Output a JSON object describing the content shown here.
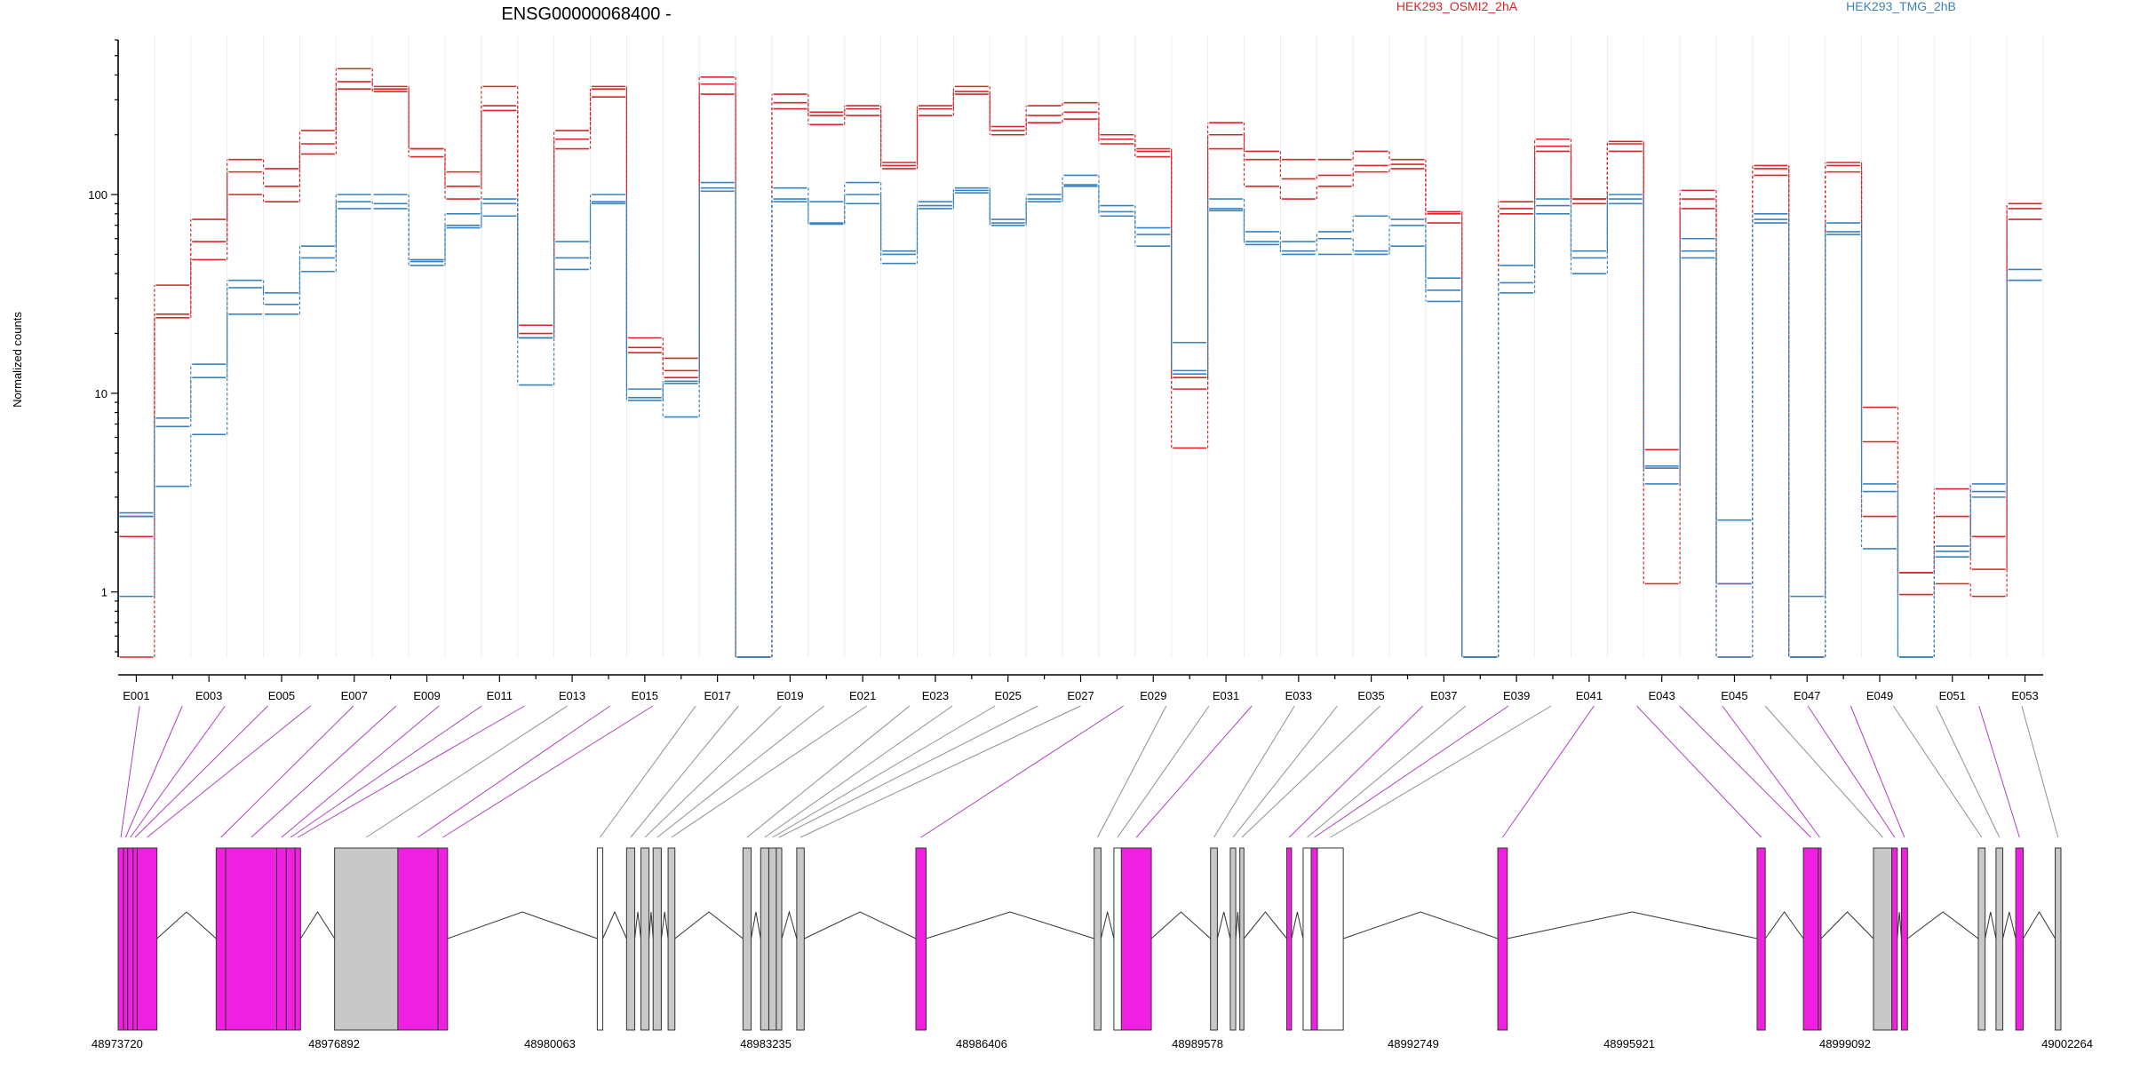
{
  "chart_data": {
    "type": "line",
    "title": "ENSG00000068400 -",
    "ylabel": "Normalized counts",
    "yscale": "log",
    "ylim": [
      0.47,
      600
    ],
    "y_ticks": [
      {
        "value": 1,
        "label": "1"
      },
      {
        "value": 10,
        "label": "10"
      },
      {
        "value": 100,
        "label": "100"
      }
    ],
    "bins": [
      "E001",
      "E002",
      "E003",
      "E004",
      "E005",
      "E006",
      "E007",
      "E008",
      "E009",
      "E010",
      "E011",
      "E012",
      "E013",
      "E014",
      "E015",
      "E016",
      "E017",
      "E018",
      "E019",
      "E020",
      "E021",
      "E022",
      "E023",
      "E024",
      "E025",
      "E026",
      "E027",
      "E028",
      "E029",
      "E030",
      "E031",
      "E032",
      "E033",
      "E034",
      "E035",
      "E036",
      "E037",
      "E038",
      "E039",
      "E040",
      "E041",
      "E042",
      "E043",
      "E044",
      "E045",
      "E046",
      "E047",
      "E048",
      "E049",
      "E050",
      "E051",
      "E052",
      "E053"
    ],
    "bin_tick_labels": [
      "E001",
      "E003",
      "E005",
      "E007",
      "E009",
      "E011",
      "E013",
      "E015",
      "E017",
      "E019",
      "E021",
      "E023",
      "E025",
      "E027",
      "E029",
      "E031",
      "E033",
      "E035",
      "E037",
      "E039",
      "E041",
      "E043",
      "E045",
      "E047",
      "E049",
      "E051",
      "E053"
    ],
    "legend": [
      {
        "name": "HEK293_OSMI2_2hA",
        "color": "#d62728"
      },
      {
        "name": "HEK293_TMG_2hB",
        "color": "#3a82be"
      }
    ],
    "series": [
      {
        "group": "HEK293_OSMI2_2hA",
        "color": "#d62728",
        "values": [
          0.47,
          25,
          58,
          130,
          110,
          180,
          430,
          340,
          170,
          110,
          280,
          20,
          190,
          340,
          17,
          13,
          360,
          0.47,
          290,
          250,
          270,
          140,
          270,
          330,
          210,
          250,
          260,
          190,
          165,
          10.5,
          200,
          150,
          120,
          125,
          140,
          142,
          80,
          0.47,
          85,
          175,
          95,
          180,
          4.2,
          95,
          0.47,
          135,
          0.47,
          140,
          5.7,
          1.25,
          2.4,
          1.9,
          85
        ]
      },
      {
        "group": "HEK293_OSMI2_2hA",
        "color": "#d62728",
        "values": [
          1.9,
          24,
          47,
          100,
          92,
          160,
          340,
          330,
          155,
          95,
          265,
          19,
          170,
          310,
          16,
          12,
          320,
          0.47,
          270,
          225,
          250,
          135,
          250,
          320,
          200,
          230,
          240,
          180,
          155,
          5.3,
          170,
          110,
          95,
          110,
          130,
          135,
          72,
          0.47,
          80,
          165,
          90,
          165,
          1.1,
          85,
          1.1,
          125,
          0.47,
          130,
          2.4,
          0.97,
          1.1,
          0.95,
          75
        ]
      },
      {
        "group": "HEK293_OSMI2_2hA",
        "color": "#d62728",
        "values": [
          2.4,
          35,
          75,
          150,
          135,
          210,
          370,
          350,
          170,
          130,
          350,
          22,
          210,
          350,
          19,
          15,
          390,
          0.47,
          320,
          260,
          280,
          145,
          280,
          350,
          220,
          280,
          290,
          200,
          170,
          12,
          230,
          165,
          150,
          150,
          165,
          150,
          82,
          0.47,
          92,
          190,
          95,
          185,
          5.2,
          105,
          1.1,
          140,
          0.47,
          145,
          8.5,
          1.25,
          3.3,
          1.3,
          90
        ]
      },
      {
        "group": "HEK293_TMG_2hB",
        "color": "#3a82be",
        "values": [
          0.95,
          7.5,
          14,
          37,
          32,
          55,
          100,
          100,
          47,
          80,
          95,
          11,
          58,
          100,
          10.5,
          7.6,
          115,
          0.47,
          108,
          92,
          115,
          52,
          92,
          108,
          75,
          100,
          125,
          88,
          68,
          18,
          95,
          65,
          58,
          65,
          78,
          75,
          38,
          0.47,
          44,
          95,
          52,
          100,
          3.5,
          60,
          2.3,
          80,
          0.95,
          72,
          3.5,
          0.47,
          1.7,
          3.5,
          42
        ]
      },
      {
        "group": "HEK293_TMG_2hB",
        "color": "#3a82be",
        "values": [
          2.4,
          6.8,
          12,
          34,
          28,
          48,
          92,
          90,
          46,
          70,
          90,
          19,
          48,
          90,
          9.5,
          11.5,
          108,
          0.47,
          95,
          72,
          90,
          50,
          88,
          105,
          72,
          95,
          112,
          82,
          63,
          13,
          85,
          58,
          52,
          60,
          52,
          70,
          33,
          0.47,
          36,
          88,
          48,
          95,
          4.2,
          52,
          1.1,
          75,
          0.47,
          65,
          1.65,
          0.47,
          1.6,
          3.2,
          37
        ]
      },
      {
        "group": "HEK293_TMG_2hB",
        "color": "#3a82be",
        "values": [
          2.5,
          3.4,
          6.2,
          25,
          25,
          41,
          85,
          85,
          44,
          68,
          78,
          19,
          42,
          92,
          9.2,
          11.2,
          104,
          0.47,
          92,
          71,
          100,
          45,
          85,
          102,
          70,
          92,
          110,
          78,
          55,
          12.5,
          83,
          56,
          50,
          50,
          50,
          55,
          29,
          0.47,
          32,
          80,
          40,
          90,
          4.3,
          48,
          0.47,
          72,
          0.47,
          63,
          3.2,
          0.47,
          1.5,
          3.0,
          37
        ]
      }
    ],
    "genomic_axis": {
      "range": [
        48973720,
        49002264
      ],
      "tick_labels": [
        "48973720",
        "48976892",
        "48980063",
        "48983235",
        "48986406",
        "48989578",
        "48992749",
        "48995921",
        "48999092",
        "49002264"
      ]
    },
    "exons": [
      {
        "start": 48973720,
        "end": 48973800,
        "color": "#f020e0"
      },
      {
        "start": 48973800,
        "end": 48973860,
        "color": "#f020e0"
      },
      {
        "start": 48973860,
        "end": 48973940,
        "color": "#f020e0"
      },
      {
        "start": 48973940,
        "end": 48974000,
        "color": "#f020e0"
      },
      {
        "start": 48974000,
        "end": 48974290,
        "color": "#f020e0"
      },
      {
        "start": 48975160,
        "end": 48975300,
        "color": "#f020e0"
      },
      {
        "start": 48975300,
        "end": 48976050,
        "color": "#f020e0"
      },
      {
        "start": 48976050,
        "end": 48976190,
        "color": "#f020e0"
      },
      {
        "start": 48976190,
        "end": 48976320,
        "color": "#f020e0"
      },
      {
        "start": 48976320,
        "end": 48976400,
        "color": "#f020e0"
      },
      {
        "start": 48976900,
        "end": 48977830,
        "color": "#c8c8c8"
      },
      {
        "start": 48977830,
        "end": 48978420,
        "color": "#f020e0"
      },
      {
        "start": 48978420,
        "end": 48978560,
        "color": "#f020e0"
      },
      {
        "start": 48980760,
        "end": 48980840,
        "color": "#ffffff"
      },
      {
        "start": 48981190,
        "end": 48981310,
        "color": "#c8c8c8"
      },
      {
        "start": 48981400,
        "end": 48981520,
        "color": "#c8c8c8"
      },
      {
        "start": 48981580,
        "end": 48981700,
        "color": "#c8c8c8"
      },
      {
        "start": 48981800,
        "end": 48981900,
        "color": "#c8c8c8"
      },
      {
        "start": 48982900,
        "end": 48983020,
        "color": "#c8c8c8"
      },
      {
        "start": 48983160,
        "end": 48983280,
        "color": "#c8c8c8"
      },
      {
        "start": 48983280,
        "end": 48983390,
        "color": "#c8c8c8"
      },
      {
        "start": 48983390,
        "end": 48983470,
        "color": "#c8c8c8"
      },
      {
        "start": 48983690,
        "end": 48983800,
        "color": "#c8c8c8"
      },
      {
        "start": 48985440,
        "end": 48985590,
        "color": "#f020e0"
      },
      {
        "start": 48988060,
        "end": 48988160,
        "color": "#c8c8c8"
      },
      {
        "start": 48988350,
        "end": 48988460,
        "color": "#ffffff"
      },
      {
        "start": 48988460,
        "end": 48988900,
        "color": "#f020e0"
      },
      {
        "start": 48989770,
        "end": 48989870,
        "color": "#c8c8c8"
      },
      {
        "start": 48990060,
        "end": 48990140,
        "color": "#c8c8c8"
      },
      {
        "start": 48990200,
        "end": 48990260,
        "color": "#c8c8c8"
      },
      {
        "start": 48990890,
        "end": 48990960,
        "color": "#f020e0"
      },
      {
        "start": 48991130,
        "end": 48991250,
        "color": "#ffffff"
      },
      {
        "start": 48991250,
        "end": 48991340,
        "color": "#f020e0"
      },
      {
        "start": 48991340,
        "end": 48991720,
        "color": "#ffffff"
      },
      {
        "start": 48993990,
        "end": 48994130,
        "color": "#f020e0"
      },
      {
        "start": 48997800,
        "end": 48997920,
        "color": "#f020e0"
      },
      {
        "start": 48998480,
        "end": 48998700,
        "color": "#f020e0"
      },
      {
        "start": 48998700,
        "end": 48998740,
        "color": "#f020e0"
      },
      {
        "start": 48999510,
        "end": 48999780,
        "color": "#c8c8c8"
      },
      {
        "start": 48999780,
        "end": 48999860,
        "color": "#f020e0"
      },
      {
        "start": 48999920,
        "end": 49000010,
        "color": "#f020e0"
      },
      {
        "start": 49001050,
        "end": 49001150,
        "color": "#c8c8c8"
      },
      {
        "start": 49001310,
        "end": 49001410,
        "color": "#c8c8c8"
      },
      {
        "start": 49001600,
        "end": 49001710,
        "color": "#f020e0"
      },
      {
        "start": 49002180,
        "end": 49002264,
        "color": "#c8c8c8"
      }
    ]
  }
}
